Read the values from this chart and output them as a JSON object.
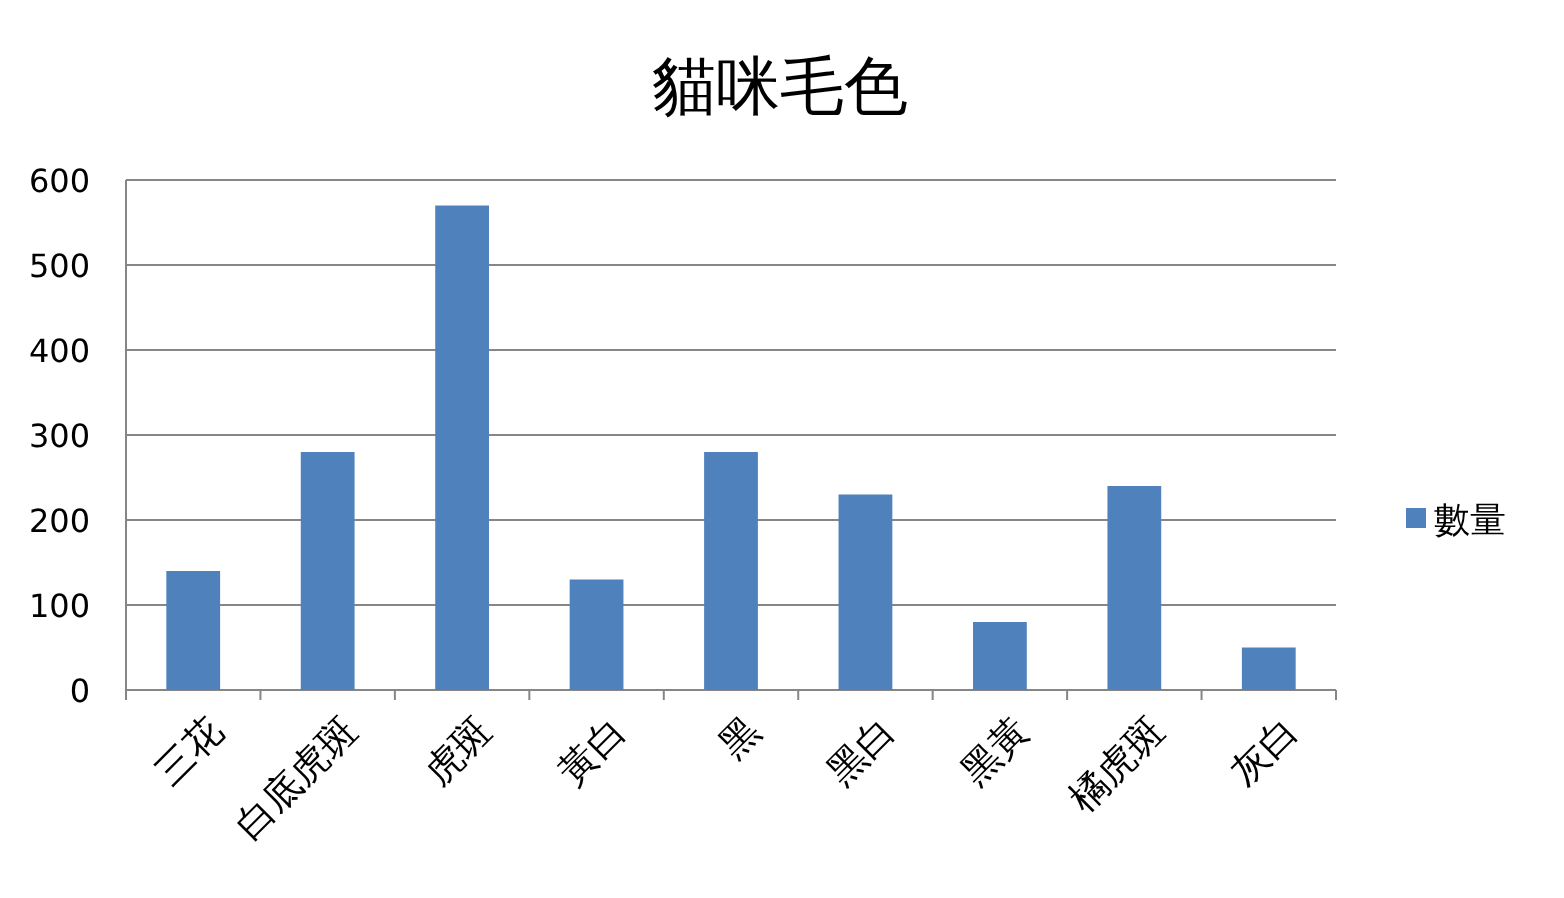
{
  "chart_data": {
    "type": "bar",
    "title": "貓咪毛色",
    "categories": [
      "三花",
      "白底虎斑",
      "虎斑",
      "黃白",
      "黑",
      "黑白",
      "黑黃",
      "橘虎斑",
      "灰白"
    ],
    "series": [
      {
        "name": "數量",
        "color": "#4f81bd",
        "values": [
          140,
          280,
          570,
          130,
          280,
          230,
          80,
          240,
          50
        ]
      }
    ],
    "ylim": [
      0,
      600
    ],
    "yticks": [
      0,
      100,
      200,
      300,
      400,
      500,
      600
    ],
    "grid": "y",
    "legend": "right"
  }
}
